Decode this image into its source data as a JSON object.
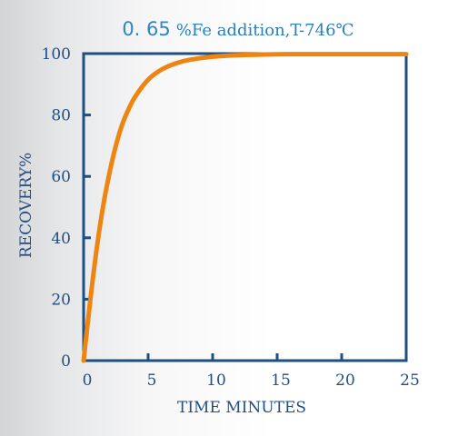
{
  "chart_data": {
    "type": "line",
    "title_value": "0. 65",
    "title_rest": "%Fe addition,T-746℃",
    "xlabel": "TIME MINUTES",
    "ylabel": "RECOVERY%",
    "xlim": [
      0,
      25
    ],
    "ylim": [
      0,
      100
    ],
    "xticks": [
      0,
      5,
      10,
      15,
      20,
      25
    ],
    "yticks": [
      0,
      20,
      40,
      60,
      80,
      100
    ],
    "grid": false,
    "legend": "none",
    "colors": {
      "axis": "#1d4e84",
      "line": "#ee8512",
      "title_value": "#2f86c0",
      "title_text": "#2a7fb8"
    },
    "series": [
      {
        "x": [
          0,
          0.5,
          1,
          1.5,
          2,
          2.5,
          3,
          3.5,
          4,
          5,
          6,
          7,
          8,
          9,
          10,
          12,
          14,
          16,
          18,
          20,
          22,
          25
        ],
        "values": [
          0,
          19,
          36,
          50,
          61,
          70,
          77,
          82,
          86,
          91.5,
          94.7,
          96.6,
          97.8,
          98.5,
          99,
          99.5,
          99.7,
          99.8,
          99.8,
          99.8,
          99.8,
          99.8
        ]
      }
    ]
  }
}
